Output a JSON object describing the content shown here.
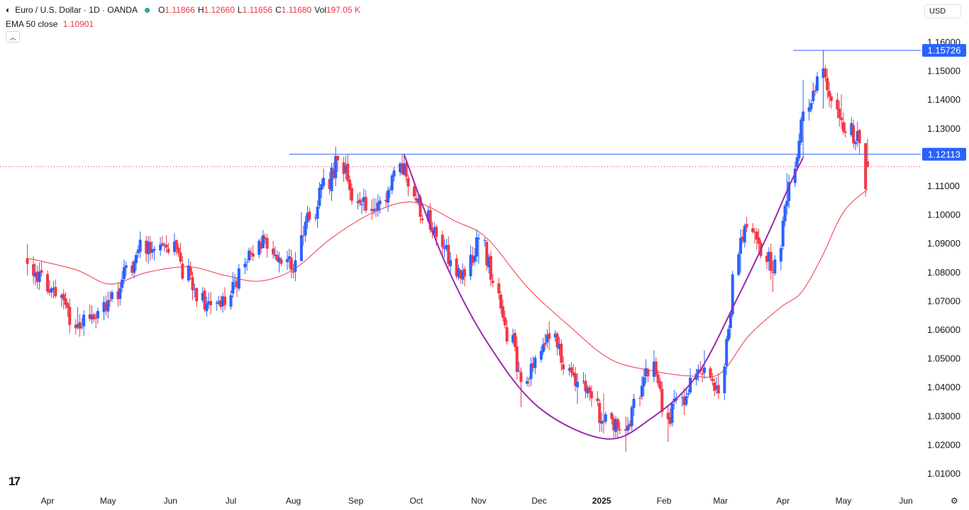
{
  "header": {
    "symbol_title": "Euro / U.S. Dollar · 1D · OANDA",
    "ohlc": [
      {
        "key": "O",
        "value": "1.11866"
      },
      {
        "key": "H",
        "value": "1.12660"
      },
      {
        "key": "L",
        "value": "1.11656"
      },
      {
        "key": "C",
        "value": "1.11680"
      },
      {
        "key": "Vol",
        "value": "197.05 K"
      }
    ],
    "ema_label": "EMA 50 close",
    "ema_value": "1.10901",
    "collapse_icon": "chevron-up-icon",
    "currency": "USD",
    "logo_text": "17",
    "settings_icon": "gear-icon"
  },
  "colors": {
    "up": "#2962ff",
    "down": "#f23645",
    "ema": "#f23645",
    "curve": "#9c27b0",
    "hline": "#2962ff",
    "current_price_line": "#f23645",
    "grid": "#f0f3fa"
  },
  "chart_data": {
    "type": "candlestick",
    "title": "",
    "ylim": [
      1.005,
      1.1625
    ],
    "y_ticks": [
      "1.01000",
      "1.02000",
      "1.03000",
      "1.04000",
      "1.05000",
      "1.06000",
      "1.07000",
      "1.08000",
      "1.09000",
      "1.10000",
      "1.11000",
      "1.12000",
      "1.13000",
      "1.14000",
      "1.15000",
      "1.16000"
    ],
    "x_ticks": [
      {
        "label": "Apr",
        "date": "2024-04-01"
      },
      {
        "label": "May",
        "date": "2024-05-01"
      },
      {
        "label": "Jun",
        "date": "2024-06-01"
      },
      {
        "label": "Jul",
        "date": "2024-07-01"
      },
      {
        "label": "Aug",
        "date": "2024-08-01"
      },
      {
        "label": "Sep",
        "date": "2024-09-01"
      },
      {
        "label": "Oct",
        "date": "2024-10-01"
      },
      {
        "label": "Nov",
        "date": "2024-11-01"
      },
      {
        "label": "Dec",
        "date": "2024-12-01"
      },
      {
        "label": "2025",
        "date": "2025-01-01",
        "bold": true
      },
      {
        "label": "Feb",
        "date": "2025-02-01"
      },
      {
        "label": "Mar",
        "date": "2025-03-01"
      },
      {
        "label": "Apr",
        "date": "2025-04-01"
      },
      {
        "label": "May",
        "date": "2025-05-01"
      },
      {
        "label": "Jun",
        "date": "2025-06-01"
      }
    ],
    "anchors": [
      {
        "date": "2024-03-22",
        "close": 1.083,
        "high": 1.09,
        "low": 1.079
      },
      {
        "date": "2024-04-16",
        "close": 1.062,
        "high": 1.068,
        "low": 1.0601
      },
      {
        "date": "2024-04-30",
        "close": 1.067,
        "high": 1.072,
        "low": 1.065
      },
      {
        "date": "2024-05-16",
        "close": 1.088,
        "high": 1.0895,
        "low": 1.085
      },
      {
        "date": "2024-06-04",
        "close": 1.088,
        "high": 1.0915,
        "low": 1.086
      },
      {
        "date": "2024-06-14",
        "close": 1.07,
        "high": 1.074,
        "low": 1.068
      },
      {
        "date": "2024-06-26",
        "close": 1.068,
        "high": 1.072,
        "low": 1.067
      },
      {
        "date": "2024-07-17",
        "close": 1.093,
        "high": 1.0948,
        "low": 1.09
      },
      {
        "date": "2024-08-01",
        "close": 1.08,
        "high": 1.083,
        "low": 1.078
      },
      {
        "date": "2024-08-05",
        "close": 1.093,
        "high": 1.101,
        "low": 1.09
      },
      {
        "date": "2024-08-23",
        "close": 1.119,
        "high": 1.1202,
        "low": 1.115
      },
      {
        "date": "2024-09-03",
        "close": 1.104,
        "high": 1.108,
        "low": 1.103
      },
      {
        "date": "2024-09-10",
        "close": 1.102,
        "high": 1.106,
        "low": 1.1
      },
      {
        "date": "2024-09-25",
        "close": 1.118,
        "high": 1.1214,
        "low": 1.115
      },
      {
        "date": "2024-10-01",
        "close": 1.105,
        "high": 1.11,
        "low": 1.104
      },
      {
        "date": "2024-10-23",
        "close": 1.078,
        "high": 1.081,
        "low": 1.0761
      },
      {
        "date": "2024-11-01",
        "close": 1.092,
        "high": 1.0937,
        "low": 1.083
      },
      {
        "date": "2024-11-22",
        "close": 1.042,
        "high": 1.047,
        "low": 1.0332
      },
      {
        "date": "2024-12-06",
        "close": 1.057,
        "high": 1.063,
        "low": 1.053
      },
      {
        "date": "2024-12-20",
        "close": 1.042,
        "high": 1.045,
        "low": 1.0343
      },
      {
        "date": "2025-01-02",
        "close": 1.028,
        "high": 1.038,
        "low": 1.024
      },
      {
        "date": "2025-01-13",
        "close": 1.025,
        "high": 1.03,
        "low": 1.0177
      },
      {
        "date": "2025-01-27",
        "close": 1.049,
        "high": 1.053,
        "low": 1.042
      },
      {
        "date": "2025-02-03",
        "close": 1.029,
        "high": 1.034,
        "low": 1.0211
      },
      {
        "date": "2025-02-21",
        "close": 1.047,
        "high": 1.053,
        "low": 1.043
      },
      {
        "date": "2025-02-28",
        "close": 1.038,
        "high": 1.045,
        "low": 1.036
      },
      {
        "date": "2025-03-11",
        "close": 1.092,
        "high": 1.095,
        "low": 1.08
      },
      {
        "date": "2025-03-18",
        "close": 1.094,
        "high": 1.0955,
        "low": 1.09
      },
      {
        "date": "2025-03-27",
        "close": 1.08,
        "high": 1.084,
        "low": 1.0733
      },
      {
        "date": "2025-04-03",
        "close": 1.105,
        "high": 1.1145,
        "low": 1.1
      },
      {
        "date": "2025-04-11",
        "close": 1.136,
        "high": 1.147,
        "low": 1.12
      },
      {
        "date": "2025-04-21",
        "close": 1.151,
        "high": 1.1573,
        "low": 1.137
      },
      {
        "date": "2025-04-30",
        "close": 1.133,
        "high": 1.142,
        "low": 1.13
      },
      {
        "date": "2025-05-09",
        "close": 1.125,
        "high": 1.13,
        "low": 1.121
      },
      {
        "date": "2025-05-12",
        "close": 1.109,
        "high": 1.123,
        "low": 1.1064
      },
      {
        "date": "2025-05-13",
        "close": 1.1168,
        "high": 1.1266,
        "low": 1.1166
      }
    ],
    "ema50": [
      {
        "date": "2024-03-22",
        "value": 1.085
      },
      {
        "date": "2024-04-15",
        "value": 1.081
      },
      {
        "date": "2024-05-02",
        "value": 1.076
      },
      {
        "date": "2024-05-20",
        "value": 1.08
      },
      {
        "date": "2024-06-10",
        "value": 1.082
      },
      {
        "date": "2024-06-28",
        "value": 1.079
      },
      {
        "date": "2024-07-15",
        "value": 1.077
      },
      {
        "date": "2024-08-01",
        "value": 1.081
      },
      {
        "date": "2024-08-20",
        "value": 1.092
      },
      {
        "date": "2024-09-10",
        "value": 1.101
      },
      {
        "date": "2024-09-30",
        "value": 1.1045
      },
      {
        "date": "2024-10-20",
        "value": 1.098
      },
      {
        "date": "2024-11-05",
        "value": 1.092
      },
      {
        "date": "2024-11-25",
        "value": 1.075
      },
      {
        "date": "2024-12-15",
        "value": 1.062
      },
      {
        "date": "2025-01-05",
        "value": 1.05
      },
      {
        "date": "2025-01-25",
        "value": 1.046
      },
      {
        "date": "2025-02-15",
        "value": 1.044
      },
      {
        "date": "2025-03-01",
        "value": 1.045
      },
      {
        "date": "2025-03-15",
        "value": 1.058
      },
      {
        "date": "2025-03-31",
        "value": 1.068
      },
      {
        "date": "2025-04-10",
        "value": 1.073
      },
      {
        "date": "2025-04-20",
        "value": 1.085
      },
      {
        "date": "2025-05-01",
        "value": 1.101
      },
      {
        "date": "2025-05-13",
        "value": 1.109
      }
    ],
    "cup_curve": [
      {
        "date": "2024-09-25",
        "value": 1.121
      },
      {
        "date": "2024-10-15",
        "value": 1.084
      },
      {
        "date": "2024-11-05",
        "value": 1.056
      },
      {
        "date": "2024-12-01",
        "value": 1.033
      },
      {
        "date": "2025-01-03",
        "value": 1.0222
      },
      {
        "date": "2025-01-25",
        "value": 1.029
      },
      {
        "date": "2025-02-17",
        "value": 1.044
      },
      {
        "date": "2025-03-10",
        "value": 1.072
      },
      {
        "date": "2025-03-25",
        "value": 1.094
      },
      {
        "date": "2025-04-04",
        "value": 1.11
      },
      {
        "date": "2025-04-11",
        "value": 1.12
      }
    ],
    "hlines": [
      {
        "value": 1.12113,
        "label": "1.12113",
        "start_date": "2024-07-30"
      },
      {
        "value": 1.15726,
        "label": "1.15726",
        "start_date": "2025-04-06"
      }
    ],
    "current_close": 1.1168
  }
}
